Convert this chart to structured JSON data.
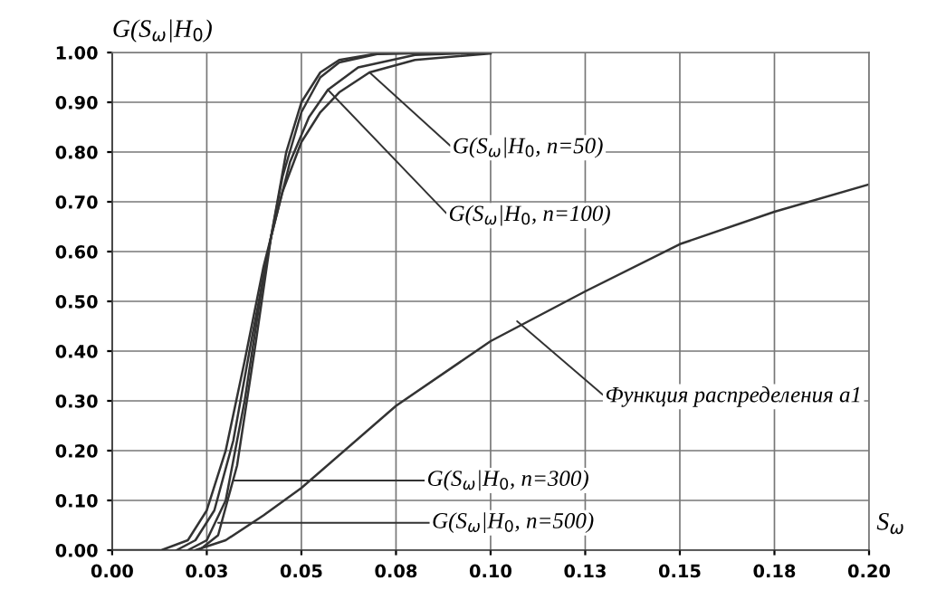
{
  "chart_data": {
    "type": "line",
    "xlabel": "S$_{ω}$",
    "ylabel": "G(S$_{ω}$|H$_{0}$)",
    "xlim": [
      0,
      0.2
    ],
    "ylim": [
      0,
      1
    ],
    "xticks": [
      {
        "value": 0,
        "label": "0.00"
      },
      {
        "value": 0.025,
        "label": "0.03"
      },
      {
        "value": 0.05,
        "label": "0.05"
      },
      {
        "value": 0.075,
        "label": "0.08"
      },
      {
        "value": 0.1,
        "label": "0.10"
      },
      {
        "value": 0.125,
        "label": "0.13"
      },
      {
        "value": 0.15,
        "label": "0.15"
      },
      {
        "value": 0.175,
        "label": "0.18"
      },
      {
        "value": 0.2,
        "label": "0.20"
      }
    ],
    "yticks": [
      {
        "value": 0,
        "label": "0.00"
      },
      {
        "value": 0.1,
        "label": "0.10"
      },
      {
        "value": 0.2,
        "label": "0.20"
      },
      {
        "value": 0.3,
        "label": "0.30"
      },
      {
        "value": 0.4,
        "label": "0.40"
      },
      {
        "value": 0.5,
        "label": "0.50"
      },
      {
        "value": 0.6,
        "label": "0.60"
      },
      {
        "value": 0.7,
        "label": "0.70"
      },
      {
        "value": 0.8,
        "label": "0.80"
      },
      {
        "value": 0.9,
        "label": "0.90"
      },
      {
        "value": 1,
        "label": "1.00"
      }
    ],
    "grid": true,
    "legend": false,
    "marker": "none",
    "line_style": "solid",
    "series": [
      {
        "color": "#333333",
        "x": [
          0,
          0.013,
          0.02,
          0.025,
          0.03,
          0.035,
          0.04,
          0.045,
          0.05,
          0.055,
          0.06,
          0.068,
          0.08,
          0.1
        ],
        "values": [
          0,
          0,
          0.02,
          0.08,
          0.2,
          0.38,
          0.57,
          0.72,
          0.82,
          0.88,
          0.92,
          0.96,
          0.985,
          0.998
        ]
      },
      {
        "color": "#333333",
        "x": [
          0.017,
          0.022,
          0.027,
          0.032,
          0.037,
          0.042,
          0.047,
          0.052,
          0.057,
          0.065,
          0.08,
          0.1
        ],
        "values": [
          0,
          0.02,
          0.08,
          0.22,
          0.43,
          0.63,
          0.78,
          0.87,
          0.925,
          0.97,
          0.995,
          1
        ]
      },
      {
        "color": "#333333",
        "x": [
          0.02,
          0.025,
          0.03,
          0.035,
          0.04,
          0.045,
          0.05,
          0.055,
          0.06,
          0.07,
          0.09
        ],
        "values": [
          0,
          0.02,
          0.1,
          0.3,
          0.55,
          0.75,
          0.88,
          0.95,
          0.98,
          0.997,
          1
        ]
      },
      {
        "color": "#333333",
        "x": [
          0.023,
          0.028,
          0.033,
          0.038,
          0.042,
          0.046,
          0.05,
          0.055,
          0.06,
          0.07,
          0.085
        ],
        "values": [
          0,
          0.03,
          0.17,
          0.42,
          0.63,
          0.8,
          0.9,
          0.96,
          0.985,
          0.998,
          1
        ]
      },
      {
        "color": "#333333",
        "x": [
          0.022,
          0.03,
          0.04,
          0.05,
          0.075,
          0.1,
          0.125,
          0.15,
          0.175,
          0.2
        ],
        "values": [
          0,
          0.02,
          0.07,
          0.125,
          0.29,
          0.42,
          0.52,
          0.615,
          0.68,
          0.735
        ]
      }
    ],
    "annotations": [
      {
        "text": "G(S$_{ω}$|H$_{0}$, n=50)",
        "x": 0.068,
        "y": 0.96
      },
      {
        "text": "G(S$_{ω}$|H$_{0}$, n=100)",
        "x": 0.057,
        "y": 0.925
      },
      {
        "text": "G(S$_{ω}$|H$_{0}$, n=300)",
        "x": 0.032,
        "y": 0.14
      },
      {
        "text": "G(S$_{ω}$|H$_{0}$, n=500)",
        "x": 0.028,
        "y": 0.055
      },
      {
        "text": "Функция распределения a1",
        "x": 0.107,
        "y": 0.46
      }
    ]
  }
}
